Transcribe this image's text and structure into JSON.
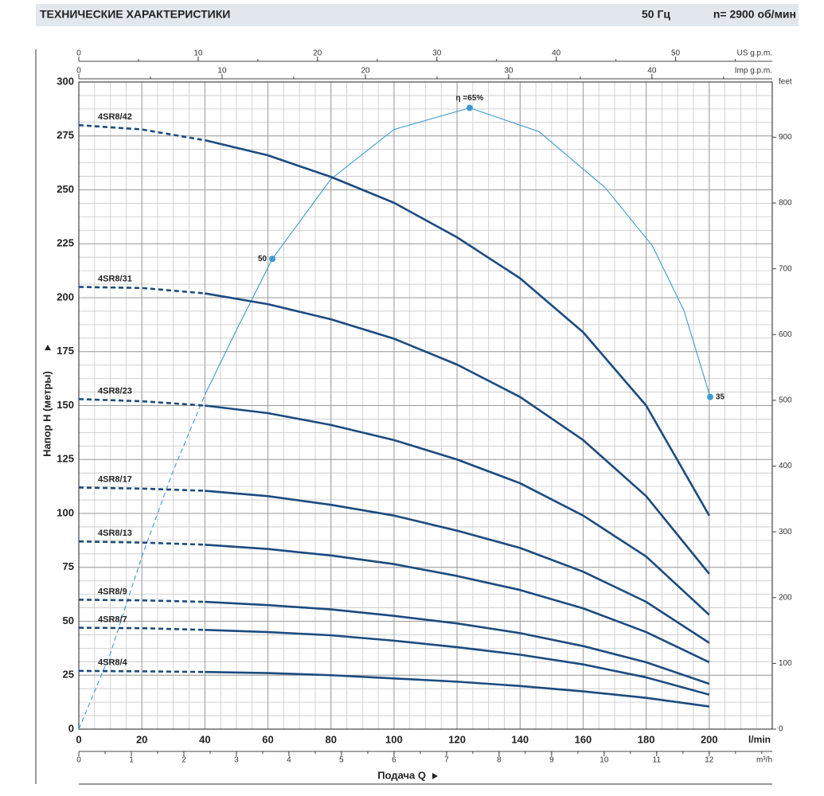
{
  "header": {
    "title": "ТЕХНИЧЕСКИЕ ХАРАКТЕРИСТИКИ",
    "frequency": "50 Гц",
    "speed": "n= 2900 об/мин"
  },
  "chart_data": {
    "type": "line",
    "ylabel": "Напор H (метры)",
    "xlabel": "Подача Q",
    "xlim": [
      0,
      220
    ],
    "xticks": [
      0,
      20,
      40,
      60,
      80,
      100,
      120,
      140,
      160,
      180,
      200
    ],
    "xunit": "l/min",
    "ylim": [
      0,
      300
    ],
    "yticks": [
      0,
      25,
      50,
      75,
      100,
      125,
      150,
      175,
      200,
      225,
      250,
      275,
      300
    ],
    "y2lim": [
      0,
      984
    ],
    "y2ticks": [
      0,
      100,
      200,
      300,
      400,
      500,
      600,
      700,
      800,
      900
    ],
    "y2unit": "feet",
    "x_m3h": {
      "unit": "m³/h",
      "lim": [
        0,
        13.2
      ],
      "ticks": [
        0,
        1,
        2,
        3,
        4,
        5,
        6,
        7,
        8,
        9,
        10,
        11,
        12
      ]
    },
    "x_usgpm": {
      "unit": "US g.p.m.",
      "lim": [
        0,
        58.1
      ],
      "ticks": [
        0,
        10,
        20,
        30,
        40,
        50
      ]
    },
    "x_impgpm": {
      "unit": "Imp g.p.m.",
      "lim": [
        0,
        48.4
      ],
      "ticks": [
        0,
        10,
        20,
        30,
        40
      ]
    },
    "grid": true,
    "dashed_range": [
      0,
      40
    ],
    "x": [
      0,
      20,
      40,
      60,
      80,
      100,
      120,
      140,
      160,
      180,
      200
    ],
    "series": [
      {
        "name": "4SR8/42",
        "color": "#1c4b7f",
        "values": [
          280,
          278,
          273,
          266,
          256,
          244,
          228,
          209,
          184,
          150,
          99
        ]
      },
      {
        "name": "4SR8/31",
        "color": "#1c4b7f",
        "values": [
          205,
          204.5,
          202,
          197,
          190,
          181,
          169,
          154,
          134,
          108,
          72
        ]
      },
      {
        "name": "4SR8/23",
        "color": "#1c4b7f",
        "values": [
          153,
          152,
          150,
          146.5,
          141,
          134,
          125,
          114,
          99,
          80,
          53
        ]
      },
      {
        "name": "4SR8/17",
        "color": "#1c4b7f",
        "values": [
          112,
          111.5,
          110.5,
          108,
          104,
          99,
          92,
          84,
          73,
          59,
          40
        ]
      },
      {
        "name": "4SR8/13",
        "color": "#1c4b7f",
        "values": [
          87,
          86.5,
          85.5,
          83.5,
          80.5,
          76.5,
          71,
          64.5,
          56,
          45,
          31
        ]
      },
      {
        "name": "4SR8/9",
        "color": "#1c4b7f",
        "values": [
          60,
          59.7,
          59,
          57.5,
          55.5,
          52.5,
          49,
          44.5,
          38.5,
          31,
          21
        ]
      },
      {
        "name": "4SR8/7",
        "color": "#1c4b7f",
        "values": [
          47,
          46.8,
          46,
          45,
          43.5,
          41,
          38,
          34.5,
          30,
          24,
          16
        ]
      },
      {
        "name": "4SR8/4",
        "color": "#1c4b7f",
        "values": [
          27,
          26.8,
          26.5,
          26,
          25,
          23.5,
          22,
          20,
          17.5,
          14.5,
          10.5
        ]
      }
    ],
    "efficiency": {
      "color": "#3d9ad1",
      "x": [
        0,
        10,
        20,
        30,
        40,
        50,
        61.4,
        80,
        100,
        124,
        146,
        167,
        182,
        192,
        200.3
      ],
      "values": [
        0,
        35,
        80,
        120,
        155,
        185,
        218,
        255,
        278,
        288,
        277,
        251,
        224,
        194,
        154
      ],
      "points": [
        {
          "x": 61.4,
          "y": 218,
          "label": "50"
        },
        {
          "x": 124,
          "y": 288,
          "label": "η =65%"
        },
        {
          "x": 200.3,
          "y": 154,
          "label": "35"
        }
      ]
    }
  }
}
